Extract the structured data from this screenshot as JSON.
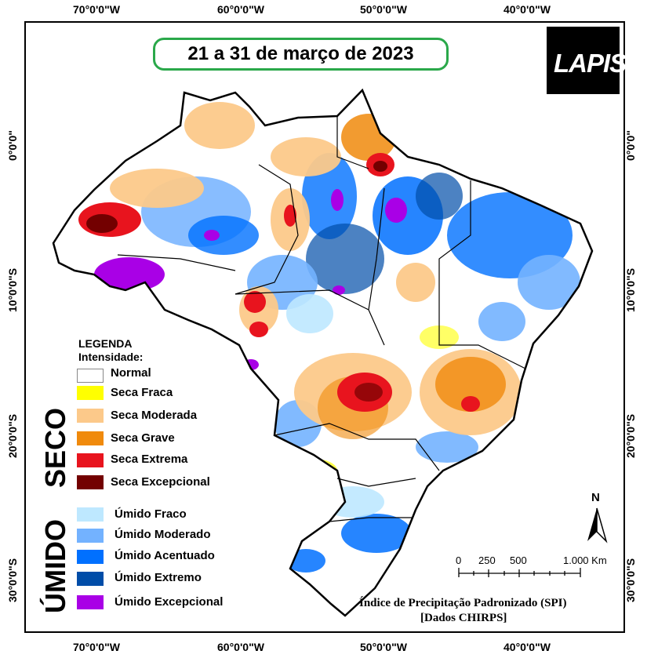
{
  "title": "21 a 31 de março de 2023",
  "logo_text": "LAPIS",
  "axes": {
    "top": [
      "70°0'0\"W",
      "60°0'0\"W",
      "50°0'0\"W",
      "40°0'0\"W"
    ],
    "bottom": [
      "70°0'0\"W",
      "60°0'0\"W",
      "50°0'0\"W",
      "40°0'0\"W"
    ],
    "left": [
      "0°0'0\"",
      "10°0'0\"S",
      "20°0'0\"S",
      "30°0'0\"S"
    ],
    "right": [
      "0°0'0\"",
      "10°0'0\"S",
      "20°0'0\"S",
      "30°0'0\"S"
    ]
  },
  "legend": {
    "title": "LEGENDA",
    "subtitle": "Intensidade:",
    "group_dry": "SECO",
    "group_wet": "ÚMIDO",
    "normal": {
      "label": "Normal",
      "color": "#ffffff"
    },
    "dry": [
      {
        "label": "Seca Fraca",
        "color": "#ffff00"
      },
      {
        "label": "Seca Moderada",
        "color": "#fcc98a"
      },
      {
        "label": "Seca Grave",
        "color": "#f08a0c"
      },
      {
        "label": "Seca Extrema",
        "color": "#e8141e"
      },
      {
        "label": "Seca Excepcional",
        "color": "#730000"
      }
    ],
    "wet": [
      {
        "label": "Úmido Fraco",
        "color": "#bee8ff"
      },
      {
        "label": "Úmido Moderado",
        "color": "#73b2ff"
      },
      {
        "label": "Úmido Acentuado",
        "color": "#0070ff"
      },
      {
        "label": "Úmido Extremo",
        "color": "#004da8"
      },
      {
        "label": "Úmido Excepcional",
        "color": "#a900e6"
      }
    ]
  },
  "north_label": "N",
  "scale_bar": {
    "labels": [
      "0",
      "250",
      "500",
      "1.000 Km"
    ]
  },
  "source_line1": "Índice de Precipitação Padronizado (SPI)",
  "source_line2": "[Dados CHIRPS]"
}
